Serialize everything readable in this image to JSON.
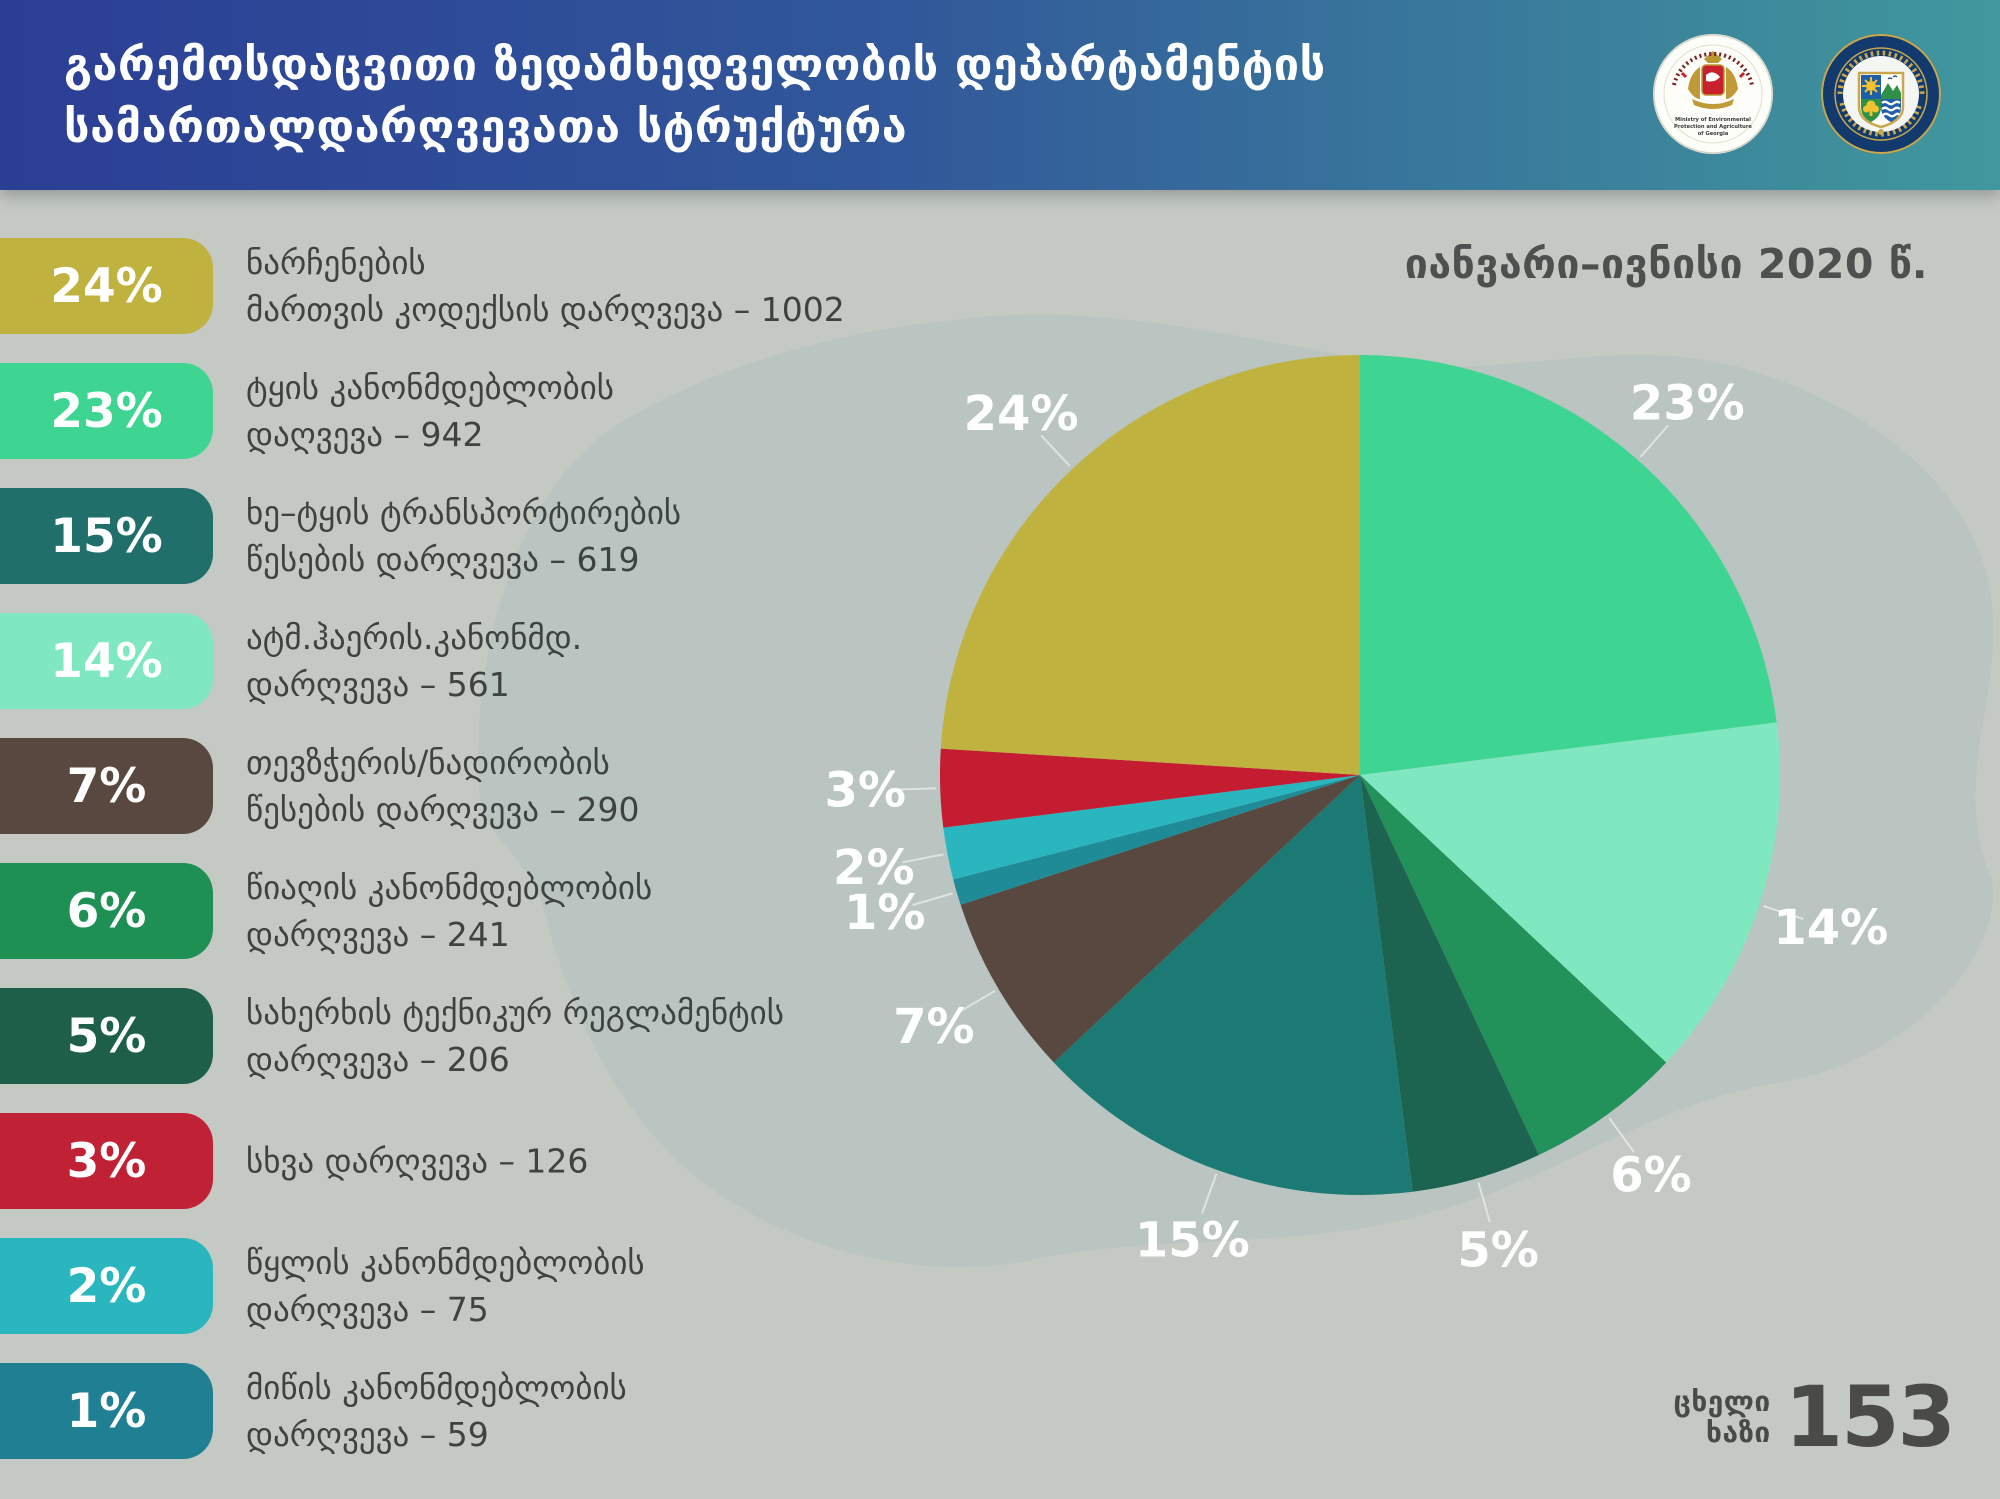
{
  "header": {
    "title_line1": "გარემოსდაცვითი ზედამხედველობის დეპარტამენტის",
    "title_line2": "სამართალდარღვევათა სტრუქტურა",
    "logos": [
      {
        "name": "ministry-seal",
        "caption_line1": "Ministry of Environmental",
        "caption_line2": "Protection and Agriculture",
        "caption_line3": "of Georgia"
      },
      {
        "name": "environmental-supervision-department-seal",
        "caption": "გარემოსდაცვითი ზედამხედველობის დეპარტამენტი"
      }
    ]
  },
  "period_label": "იანვარი–ივნისი 2020 წ.",
  "legend": {
    "items": [
      {
        "percent": "24%",
        "color": "#c0b23f",
        "line1": "ნარჩენების",
        "line2": "მართვის კოდექსის დარღვევა – 1002",
        "count": 1002
      },
      {
        "percent": "23%",
        "color": "#3ed492",
        "line1": "ტყის კანონმდებლობის",
        "line2": "დაღვევა – 942",
        "count": 942
      },
      {
        "percent": "15%",
        "color": "#206f6b",
        "line1": "ხე–ტყის ტრანსპორტირების",
        "line2": "წესების დარღვევა – 619",
        "count": 619
      },
      {
        "percent": "14%",
        "color": "#80e8c0",
        "line1": "ატმ.ჰაერის.კანონმდ.",
        "line2": "დარღვევა – 561",
        "count": 561
      },
      {
        "percent": "7%",
        "color": "#584840",
        "line1": "თევზჭერის/ნადირობის",
        "line2": "წესების დარღვევა – 290",
        "count": 290
      },
      {
        "percent": "6%",
        "color": "#1f9054",
        "line1": "წიაღის კანონმდებლობის",
        "line2": "დარღვევა – 241",
        "count": 241
      },
      {
        "percent": "5%",
        "color": "#1d5f49",
        "line1": "სახერხის ტექნიკურ რეგლამენტის",
        "line2": "დარღვევა – 206",
        "count": 206
      },
      {
        "percent": "3%",
        "color": "#c12134",
        "line1": "სხვა დარღვევა – 126",
        "line2": "",
        "count": 126
      },
      {
        "percent": "2%",
        "color": "#2ab6bf",
        "line1": "წყლის კანონმდებლობის",
        "line2": "დარღვევა – 75",
        "count": 75
      },
      {
        "percent": "1%",
        "color": "#1f8093",
        "line1": "მიწის კანონმდებლობის",
        "line2": "დარღვევა – 59",
        "count": 59
      }
    ]
  },
  "chart_data": {
    "type": "pie",
    "title": "სამართალდარღვევათა სტრუქტურა",
    "period": "იანვარი–ივნისი 2020 წ.",
    "unit": "percent",
    "start_angle_deg": 0,
    "direction": "clockwise",
    "slices": [
      {
        "label": "ტყის კანონმდებლობის დაღვევა",
        "percent": 23,
        "count": 942,
        "color": "#3ed492"
      },
      {
        "label": "ატმ.ჰაერის.კანონმდ. დარღვევა",
        "percent": 14,
        "count": 561,
        "color": "#80e8c0"
      },
      {
        "label": "წიაღის კანონმდებლობის დარღვევა",
        "percent": 6,
        "count": 241,
        "color": "#23915a"
      },
      {
        "label": "სახერხის ტექნიკურ რეგლამენტის დარღვევა",
        "percent": 5,
        "count": 206,
        "color": "#1d6450"
      },
      {
        "label": "ხე–ტყის ტრანსპორტირების წესების დარღვევა",
        "percent": 15,
        "count": 619,
        "color": "#1b7a74"
      },
      {
        "label": "თევზჭერის/ნადირობის წესების დარღვევა",
        "percent": 7,
        "count": 290,
        "color": "#584840"
      },
      {
        "label": "მიწის კანონმდებლობის დარღვევა",
        "percent": 1,
        "count": 59,
        "color": "#1e8b96"
      },
      {
        "label": "წყლის კანონმდებლობის დარღვევა",
        "percent": 2,
        "count": 75,
        "color": "#2ab6bf"
      },
      {
        "label": "სხვა დარღვევა",
        "percent": 3,
        "count": 126,
        "color": "#c41c30"
      },
      {
        "label": "ნარჩენების მართვის კოდექსის დარღვევა",
        "percent": 24,
        "count": 1002,
        "color": "#c0b23f"
      }
    ],
    "legend_position": "left",
    "grid": false
  },
  "footer": {
    "hotline_line1": "ცხელი",
    "hotline_line2": "ხაზი",
    "hotline_number": "153"
  },
  "colors": {
    "background": "#c5c9c3",
    "map_silhouette": "#bac4c0",
    "header_gradient_start": "#2b3e95",
    "header_gradient_end": "#40989d",
    "text_dark": "#3e4340",
    "pie_label": "#ffffff"
  }
}
